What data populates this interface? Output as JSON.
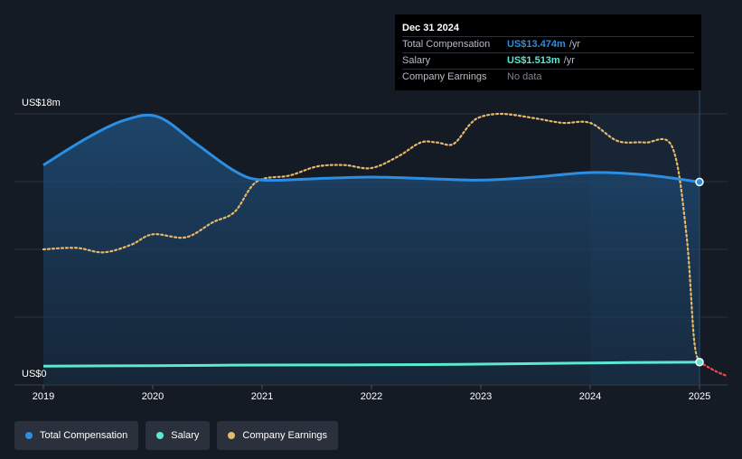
{
  "colors": {
    "total": "#2b8ee3",
    "salary": "#5ce8d2",
    "earnings": "#e8b86a",
    "earnings_forecast": "#e84b4b",
    "background": "#151b24",
    "grid": "#2a313b"
  },
  "tooltip": {
    "date": "Dec 31 2024",
    "rows": [
      {
        "label": "Total Compensation",
        "value": "US$13.474m",
        "unit": "/yr",
        "color": "#2b8ee3"
      },
      {
        "label": "Salary",
        "value": "US$1.513m",
        "unit": "/yr",
        "color": "#5ce8d2"
      },
      {
        "label": "Company Earnings",
        "value": "No data",
        "unit": "",
        "color": "#7c838d"
      }
    ]
  },
  "legend": [
    {
      "label": "Total Compensation",
      "color": "#2b8ee3"
    },
    {
      "label": "Salary",
      "color": "#5ce8d2"
    },
    {
      "label": "Company Earnings",
      "color": "#e8b86a"
    }
  ],
  "chart_data": {
    "type": "line",
    "y_top_label": "US$18m",
    "y_bottom_label": "US$0",
    "ylim": [
      0,
      18
    ],
    "xlim": [
      2019,
      2025.25
    ],
    "x_ticks": [
      "2019",
      "2020",
      "2021",
      "2022",
      "2023",
      "2024",
      "2025"
    ],
    "series": [
      {
        "name": "Total Compensation",
        "points": [
          [
            2019,
            14.6
          ],
          [
            2019.4,
            16.4
          ],
          [
            2019.75,
            17.6
          ],
          [
            2020.05,
            17.8
          ],
          [
            2020.4,
            16.0
          ],
          [
            2020.75,
            14.2
          ],
          [
            2021.0,
            13.6
          ],
          [
            2021.5,
            13.7
          ],
          [
            2022.0,
            13.8
          ],
          [
            2022.5,
            13.7
          ],
          [
            2023.0,
            13.6
          ],
          [
            2023.5,
            13.8
          ],
          [
            2024.0,
            14.1
          ],
          [
            2024.5,
            13.95
          ],
          [
            2025.0,
            13.474
          ]
        ]
      },
      {
        "name": "Salary",
        "points": [
          [
            2019,
            1.25
          ],
          [
            2020,
            1.28
          ],
          [
            2021,
            1.32
          ],
          [
            2022,
            1.33
          ],
          [
            2023,
            1.38
          ],
          [
            2024,
            1.46
          ],
          [
            2025,
            1.513
          ]
        ]
      },
      {
        "name": "Company Earnings",
        "dashed": true,
        "points": [
          [
            2019,
            9.0
          ],
          [
            2019.3,
            9.1
          ],
          [
            2019.55,
            8.8
          ],
          [
            2019.8,
            9.3
          ],
          [
            2020.0,
            10.0
          ],
          [
            2020.3,
            9.8
          ],
          [
            2020.55,
            10.8
          ],
          [
            2020.75,
            11.5
          ],
          [
            2020.95,
            13.5
          ],
          [
            2021.25,
            13.9
          ],
          [
            2021.5,
            14.5
          ],
          [
            2021.75,
            14.6
          ],
          [
            2022.0,
            14.4
          ],
          [
            2022.25,
            15.2
          ],
          [
            2022.45,
            16.1
          ],
          [
            2022.6,
            16.1
          ],
          [
            2022.75,
            16.0
          ],
          [
            2022.9,
            17.3
          ],
          [
            2023.0,
            17.8
          ],
          [
            2023.2,
            18.0
          ],
          [
            2023.5,
            17.7
          ],
          [
            2023.75,
            17.4
          ],
          [
            2024.0,
            17.4
          ],
          [
            2024.25,
            16.2
          ],
          [
            2024.5,
            16.1
          ],
          [
            2024.75,
            15.8
          ],
          [
            2024.88,
            10.0
          ],
          [
            2024.95,
            3.0
          ],
          [
            2025.0,
            1.513
          ]
        ]
      },
      {
        "name": "Company Earnings (forecast)",
        "dashed": true,
        "points": [
          [
            2025.0,
            1.513
          ],
          [
            2025.15,
            0.9
          ],
          [
            2025.25,
            0.6
          ]
        ]
      }
    ],
    "highlight_range": [
      2024.0,
      2025.0
    ],
    "grid": true
  }
}
